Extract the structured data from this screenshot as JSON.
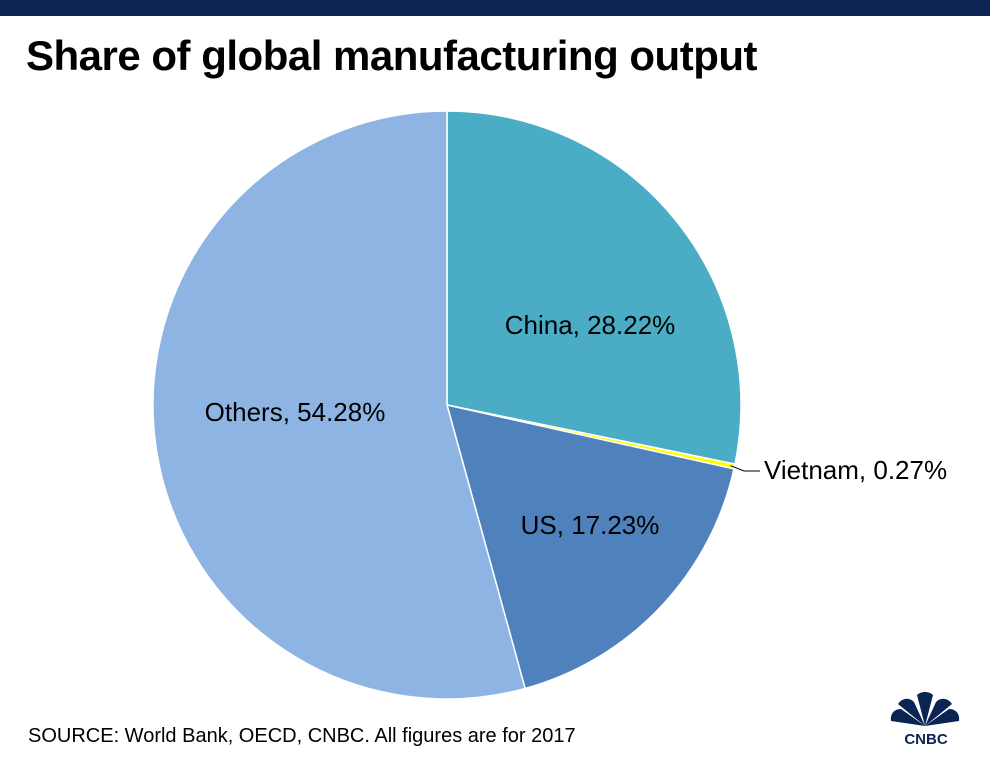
{
  "header": {
    "title": "Share of global manufacturing output",
    "bar_color": "#0b2454"
  },
  "chart_data": {
    "type": "pie",
    "title": "Share of global manufacturing output",
    "slices": [
      {
        "name": "China",
        "value": 28.22,
        "label": "China, 28.22%",
        "color": "#4bacc6"
      },
      {
        "name": "Vietnam",
        "value": 0.27,
        "label": "Vietnam, 0.27%",
        "color": "#ffff00"
      },
      {
        "name": "US",
        "value": 17.23,
        "label": "US, 17.23%",
        "color": "#4f81bd"
      },
      {
        "name": "Others",
        "value": 54.28,
        "label": "Others, 54.28%",
        "color": "#8eb4e3"
      }
    ],
    "start_angle": "12 o'clock",
    "direction": "clockwise",
    "legend": "none"
  },
  "footer": {
    "source": "SOURCE: World Bank, OECD, CNBC. All figures are for 2017",
    "logo_text": "CNBC",
    "logo_icon": "peacock-icon",
    "logo_color": "#0b2454"
  }
}
